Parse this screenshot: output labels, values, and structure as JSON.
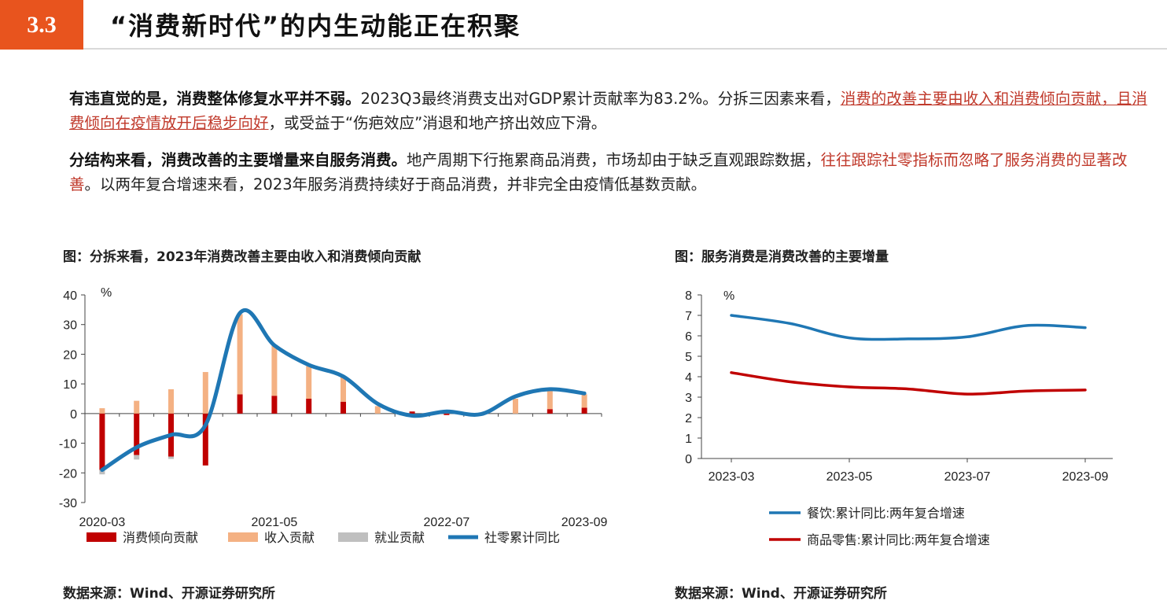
{
  "header": {
    "section_number": "3.3",
    "title": "“消费新时代”的内生动能正在积聚"
  },
  "paragraph1": {
    "lead": "有违直觉的是，消费整体修复水平并不弱。",
    "text1": "2023Q3最终消费支出对GDP累计贡献率为83.2%。分拆三因素来看，",
    "highlight": "消费的改善主要由收入和消费倾向贡献，且消费倾向在疫情放开后稳步向好",
    "text2": "，或受益于“伤疤效应”消退和地产挤出效应下滑。"
  },
  "paragraph2": {
    "lead": "分结构来看，消费改善的主要增量来自服务消费。",
    "text1": "地产周期下行拖累商品消费，市场却由于缺乏直观跟踪数据，",
    "highlight": "往往跟踪社零指标而忽略了服务消费的显著改善",
    "text2": "。以两年复合增速来看，2023年服务消费持续好于商品消费，并非完全由疫情低基数贡献。"
  },
  "figure1": {
    "title": "图：分拆来看，2023年消费改善主要由收入和消费倾向贡献",
    "source": "数据来源：Wind、开源证券研究所"
  },
  "figure2": {
    "title": "图：服务消费是消费改善的主要增量",
    "source": "数据来源：Wind、开源证券研究所"
  },
  "chart_data": [
    {
      "type": "bar",
      "unit": "%",
      "ylim": [
        -30,
        40
      ],
      "yticks": [
        40,
        30,
        20,
        10,
        0,
        -10,
        -20,
        -30
      ],
      "xtick_labels": [
        "2020-03",
        "2021-05",
        "2022-07",
        "2023-09"
      ],
      "x": [
        "2020-03",
        "2020-06",
        "2020-09",
        "2020-12",
        "2021-03",
        "2021-06",
        "2021-09",
        "2021-12",
        "2022-03",
        "2022-06",
        "2022-09",
        "2022-12",
        "2023-03",
        "2023-06",
        "2023-09"
      ],
      "series": [
        {
          "name": "消费倾向贡献",
          "kind": "bar",
          "color": "#c00000",
          "values": [
            -19,
            -14,
            -14.5,
            -17.5,
            6.5,
            6,
            5,
            4,
            0,
            0.7,
            -0.5,
            0,
            0,
            1.5,
            2
          ]
        },
        {
          "name": "收入贡献",
          "kind": "bar",
          "color": "#f4b183",
          "values": [
            1.8,
            4.3,
            8.2,
            14,
            27,
            17,
            11,
            8.5,
            2.5,
            0,
            0.8,
            0,
            5,
            6.5,
            4.5
          ]
        },
        {
          "name": "就业贡献",
          "kind": "bar",
          "color": "#bfbfbf",
          "values": [
            -1.5,
            -1.5,
            -0.8,
            0,
            0,
            0,
            0,
            0,
            0,
            0,
            0,
            0,
            0,
            0,
            0
          ]
        },
        {
          "name": "社零累计同比",
          "kind": "line",
          "color": "#1f77b4",
          "values": [
            -19,
            -11.4,
            -7.2,
            -3.9,
            33.9,
            23,
            16.4,
            12.5,
            3.3,
            -0.7,
            0.7,
            -0.2,
            5.8,
            8.2,
            6.8
          ]
        }
      ]
    },
    {
      "type": "line",
      "unit": "%",
      "ylim": [
        0,
        8
      ],
      "yticks": [
        8,
        7,
        6,
        5,
        4,
        3,
        2,
        1,
        0
      ],
      "xtick_labels": [
        "2023-03",
        "2023-05",
        "2023-07",
        "2023-09"
      ],
      "x": [
        "2023-03",
        "2023-04",
        "2023-05",
        "2023-06",
        "2023-07",
        "2023-08",
        "2023-09"
      ],
      "series": [
        {
          "name": "餐饮:累计同比:两年复合增速",
          "color": "#1f77b4",
          "values": [
            7.0,
            6.6,
            5.9,
            5.85,
            5.95,
            6.5,
            6.4
          ]
        },
        {
          "name": "商品零售:累计同比:两年复合增速",
          "color": "#c00000",
          "values": [
            4.2,
            3.75,
            3.5,
            3.4,
            3.15,
            3.3,
            3.35
          ]
        }
      ]
    }
  ]
}
